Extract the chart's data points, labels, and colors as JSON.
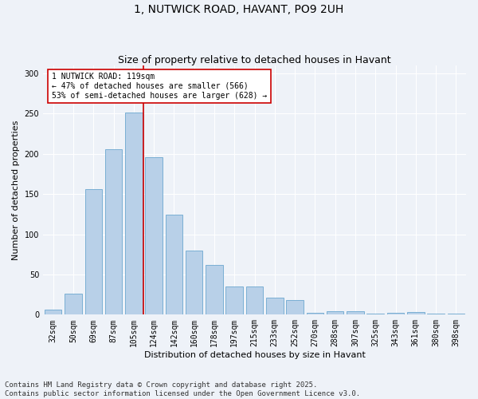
{
  "title": "1, NUTWICK ROAD, HAVANT, PO9 2UH",
  "subtitle": "Size of property relative to detached houses in Havant",
  "xlabel": "Distribution of detached houses by size in Havant",
  "ylabel": "Number of detached properties",
  "categories": [
    "32sqm",
    "50sqm",
    "69sqm",
    "87sqm",
    "105sqm",
    "124sqm",
    "142sqm",
    "160sqm",
    "178sqm",
    "197sqm",
    "215sqm",
    "233sqm",
    "252sqm",
    "270sqm",
    "288sqm",
    "307sqm",
    "325sqm",
    "343sqm",
    "361sqm",
    "380sqm",
    "398sqm"
  ],
  "values": [
    6,
    26,
    156,
    206,
    251,
    196,
    124,
    80,
    62,
    35,
    35,
    21,
    18,
    2,
    4,
    4,
    1,
    2,
    3,
    1,
    1
  ],
  "bar_color": "#b8d0e8",
  "bar_edge_color": "#7aafd4",
  "vline_index": 4.5,
  "property_line_label": "1 NUTWICK ROAD: 119sqm",
  "annotation_line1": "← 47% of detached houses are smaller (566)",
  "annotation_line2": "53% of semi-detached houses are larger (628) →",
  "annotation_box_facecolor": "#ffffff",
  "annotation_box_edgecolor": "#cc0000",
  "vline_color": "#cc0000",
  "background_color": "#eef2f8",
  "grid_color": "#ffffff",
  "ylim": [
    0,
    310
  ],
  "footer_line1": "Contains HM Land Registry data © Crown copyright and database right 2025.",
  "footer_line2": "Contains public sector information licensed under the Open Government Licence v3.0.",
  "title_fontsize": 10,
  "subtitle_fontsize": 9,
  "axis_label_fontsize": 8,
  "tick_fontsize": 7,
  "annotation_fontsize": 7,
  "footer_fontsize": 6.5
}
